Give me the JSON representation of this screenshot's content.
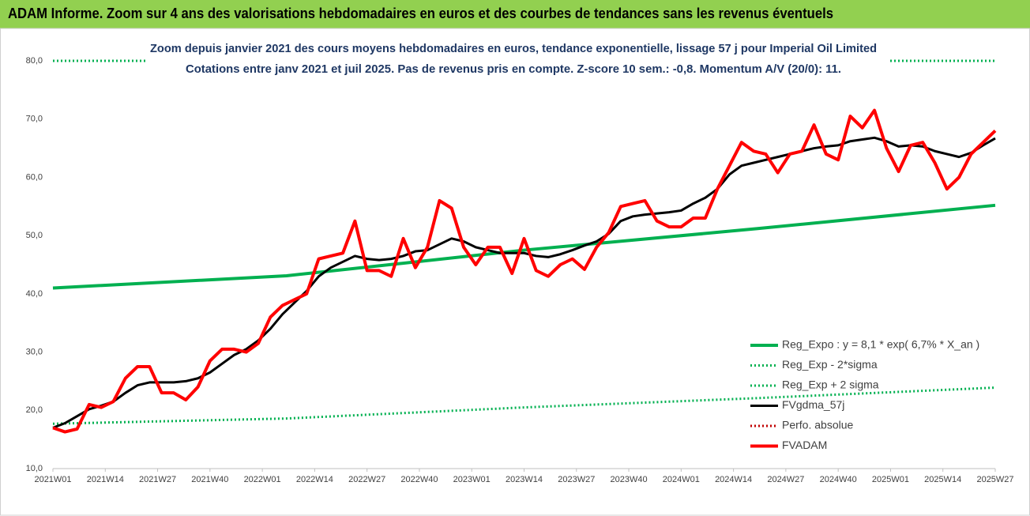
{
  "chart_data": {
    "type": "line",
    "header": "ADAM Informe. Zoom sur 4 ans des valorisations hebdomadaires en euros et des courbes de tendances sans les revenus éventuels",
    "title": "Zoom depuis janvier 2021 des cours moyens hebdomadaires en euros, tendance exponentielle, lissage 57 j pour Imperial Oil Limited",
    "subtitle": "Cotations entre janv 2021 et juil 2025. Pas de revenus pris en compte. Z-score 10 sem.: -0,8. Momentum A/V (20/0): 11.",
    "xlim": [
      0,
      234
    ],
    "xticks": [
      {
        "value": 0,
        "label": "2021W01"
      },
      {
        "value": 13,
        "label": "2021W14"
      },
      {
        "value": 26,
        "label": "2021W27"
      },
      {
        "value": 39,
        "label": "2021W40"
      },
      {
        "value": 52,
        "label": "2022W01"
      },
      {
        "value": 65,
        "label": "2022W14"
      },
      {
        "value": 78,
        "label": "2022W27"
      },
      {
        "value": 91,
        "label": "2022W40"
      },
      {
        "value": 104,
        "label": "2023W01"
      },
      {
        "value": 117,
        "label": "2023W14"
      },
      {
        "value": 130,
        "label": "2023W27"
      },
      {
        "value": 143,
        "label": "2023W40"
      },
      {
        "value": 156,
        "label": "2024W01"
      },
      {
        "value": 169,
        "label": "2024W14"
      },
      {
        "value": 182,
        "label": "2024W27"
      },
      {
        "value": 195,
        "label": "2024W40"
      },
      {
        "value": 208,
        "label": "2025W01"
      },
      {
        "value": 221,
        "label": "2025W14"
      },
      {
        "value": 234,
        "label": "2025W27"
      }
    ],
    "ylim": [
      10,
      80
    ],
    "yticks": [
      {
        "value": 10,
        "label": "10,0"
      },
      {
        "value": 20,
        "label": "20,0"
      },
      {
        "value": 30,
        "label": "30,0"
      },
      {
        "value": 40,
        "label": "40,0"
      },
      {
        "value": 50,
        "label": "50,0"
      },
      {
        "value": 60,
        "label": "60,0"
      },
      {
        "value": 70,
        "label": "70,0"
      },
      {
        "value": 80,
        "label": "80,0"
      }
    ],
    "series": [
      {
        "name": "Reg_Expo : y = 8,1 * exp( 6,7% *  X_an )",
        "color": "#00b050",
        "style": "solid",
        "width": 4,
        "x": [
          0,
          58,
          117,
          175,
          234
        ],
        "values": [
          41,
          43.1,
          47.5,
          51.2,
          55.2
        ]
      },
      {
        "name": "Reg_Exp - 2*sigma",
        "color": "#00b050",
        "style": "dotted",
        "width": 3,
        "x": [
          0,
          58,
          117,
          175,
          234
        ],
        "values": [
          17.7,
          18.6,
          20.5,
          22.1,
          23.9
        ]
      },
      {
        "name": "Reg_Exp + 2 sigma",
        "color": "#00b050",
        "style": "dotted",
        "width": 3,
        "x": [
          0,
          234
        ],
        "values": [
          80,
          80
        ]
      },
      {
        "name": "FVgdma_57j",
        "color": "#000000",
        "style": "solid",
        "width": 3,
        "x": [
          0,
          3,
          6,
          9,
          12,
          15,
          18,
          21,
          24,
          27,
          30,
          33,
          36,
          39,
          42,
          45,
          48,
          51,
          54,
          57,
          60,
          63,
          66,
          69,
          72,
          75,
          78,
          81,
          84,
          87,
          90,
          93,
          96,
          99,
          102,
          105,
          108,
          111,
          114,
          117,
          120,
          123,
          126,
          129,
          132,
          135,
          138,
          141,
          144,
          147,
          150,
          153,
          156,
          159,
          162,
          165,
          168,
          171,
          174,
          177,
          180,
          183,
          186,
          189,
          192,
          195,
          198,
          201,
          204,
          207,
          210,
          213,
          216,
          219,
          222,
          225,
          228,
          231,
          234
        ],
        "values": [
          17,
          17.8,
          19,
          20.2,
          20.8,
          21.5,
          23,
          24.3,
          24.8,
          24.8,
          24.8,
          25,
          25.5,
          26.5,
          28,
          29.5,
          30.5,
          32,
          34,
          36.5,
          38.5,
          40.5,
          43,
          44.5,
          45.5,
          46.5,
          46,
          45.8,
          46,
          46.5,
          47.3,
          47.5,
          48.5,
          49.5,
          49,
          48,
          47.5,
          47,
          47,
          47,
          46.5,
          46.3,
          46.8,
          47.5,
          48.3,
          49,
          50.3,
          52.5,
          53.3,
          53.6,
          53.8,
          54,
          54.3,
          55.5,
          56.5,
          58,
          60.5,
          62,
          62.5,
          63,
          63.5,
          64,
          64.5,
          65,
          65.3,
          65.5,
          66.2,
          66.5,
          66.8,
          66.2,
          65.3,
          65.5,
          65.3,
          64.5,
          64,
          63.5,
          64.2,
          65.5,
          66.7
        ]
      },
      {
        "name": "Perfo. absolue",
        "color": "#c00000",
        "style": "dotted",
        "width": 3,
        "x": [
          0,
          234
        ],
        "values": [
          null,
          null
        ]
      },
      {
        "name": "FVADAM",
        "color": "#ff0000",
        "style": "solid",
        "width": 4,
        "x": [
          0,
          3,
          6,
          9,
          12,
          15,
          18,
          21,
          24,
          27,
          30,
          33,
          36,
          39,
          42,
          45,
          48,
          51,
          54,
          57,
          60,
          63,
          66,
          69,
          72,
          75,
          78,
          81,
          84,
          87,
          90,
          93,
          96,
          99,
          102,
          105,
          108,
          111,
          114,
          117,
          120,
          123,
          126,
          129,
          132,
          135,
          138,
          141,
          144,
          147,
          150,
          153,
          156,
          159,
          162,
          165,
          168,
          171,
          174,
          177,
          180,
          183,
          186,
          189,
          192,
          195,
          198,
          201,
          204,
          207,
          210,
          213,
          216,
          219,
          222,
          225,
          228,
          231,
          234
        ],
        "values": [
          17,
          16.3,
          16.8,
          21,
          20.5,
          21.5,
          25.5,
          27.5,
          27.5,
          23,
          23,
          21.8,
          24,
          28.5,
          30.5,
          30.5,
          30,
          31.5,
          36,
          38,
          39,
          40,
          46,
          46.5,
          47,
          52.5,
          44,
          44,
          43,
          49.5,
          44.5,
          48,
          56,
          54.7,
          48,
          45,
          48,
          48,
          43.5,
          49.5,
          44,
          43,
          45,
          46,
          44.2,
          48,
          50.5,
          55,
          55.5,
          56,
          52.5,
          51.5,
          51.5,
          53,
          53,
          58,
          62,
          66,
          64.5,
          64,
          60.8,
          64,
          64.5,
          69,
          64,
          63,
          70.5,
          68.5,
          71.5,
          65,
          61,
          65.5,
          66,
          62.5,
          58,
          60,
          64,
          66,
          68
        ]
      }
    ]
  }
}
